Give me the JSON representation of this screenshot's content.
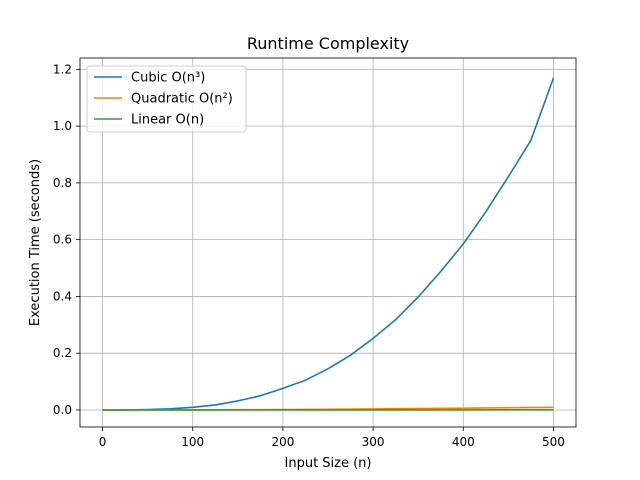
{
  "chart_data": {
    "type": "line",
    "title": "Runtime Complexity",
    "xlabel": "Input Size (n)",
    "ylabel": "Execution Time (seconds)",
    "xlim": [
      -25,
      525
    ],
    "ylim": [
      -0.06,
      1.24
    ],
    "xticks": [
      0,
      100,
      200,
      300,
      400,
      500
    ],
    "yticks": [
      0.0,
      0.2,
      0.4,
      0.6,
      0.8,
      1.0,
      1.2
    ],
    "xtick_labels": [
      "0",
      "100",
      "200",
      "300",
      "400",
      "500"
    ],
    "ytick_labels": [
      "0.0",
      "0.2",
      "0.4",
      "0.6",
      "0.8",
      "1.0",
      "1.2"
    ],
    "grid": true,
    "legend_position": "top-left",
    "series": [
      {
        "name": "Cubic O(n³)",
        "color": "#1f77b4",
        "x": [
          0,
          25,
          50,
          75,
          100,
          125,
          150,
          175,
          200,
          225,
          250,
          275,
          300,
          325,
          350,
          375,
          400,
          425,
          450,
          475,
          500
        ],
        "y": [
          0.0,
          0.0002,
          0.0012,
          0.004,
          0.0095,
          0.018,
          0.032,
          0.05,
          0.076,
          0.105,
          0.145,
          0.193,
          0.252,
          0.318,
          0.398,
          0.488,
          0.585,
          0.698,
          0.822,
          0.95,
          1.17
        ]
      },
      {
        "name": "Quadratic O(n²)",
        "color": "#ff7f0e",
        "x": [
          0,
          50,
          100,
          150,
          200,
          250,
          300,
          350,
          400,
          450,
          500
        ],
        "y": [
          0.0,
          0.0001,
          0.0004,
          0.0009,
          0.0016,
          0.0025,
          0.0036,
          0.0049,
          0.0064,
          0.0081,
          0.0095
        ]
      },
      {
        "name": "Linear O(n)",
        "color": "#2ca02c",
        "x": [
          0,
          100,
          200,
          300,
          400,
          500
        ],
        "y": [
          0.0,
          0.0001,
          0.0002,
          0.0003,
          0.0004,
          0.0005
        ]
      }
    ]
  }
}
